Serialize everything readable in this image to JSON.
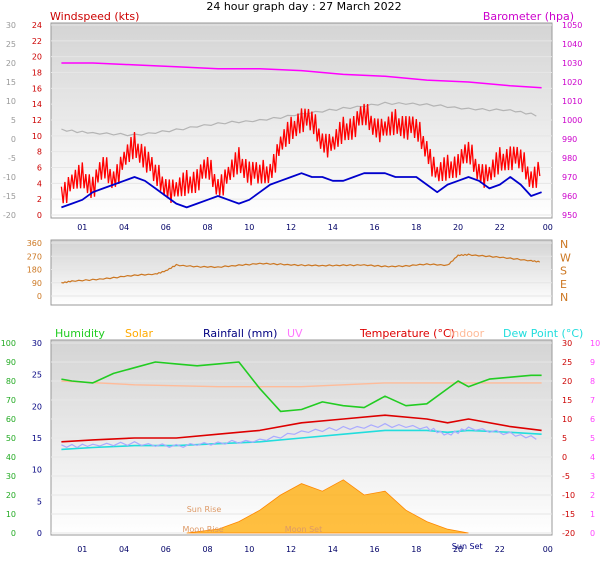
{
  "title": "24 hour graph day : 27 March 2022",
  "colors": {
    "wind_gust": "#ff0000",
    "wind_avg": "#0000cc",
    "barometer": "#ff00ff",
    "temp_gray": "#b4b4b4",
    "direction": "#cc7722",
    "humidity": "#22cc22",
    "solar": "#ffaa00",
    "rain": "#000080",
    "uv": "#ff77ff",
    "temperature": "#dd0000",
    "indoor": "#ffbb99",
    "dewpoint": "#22dddd",
    "ind_baro": "#ff44ff",
    "grad_top": "#d4d4d4",
    "grad_bottom": "#ffffff"
  },
  "x_tick_labels": [
    "01",
    "04",
    "06",
    "08",
    "10",
    "12",
    "14",
    "16",
    "18",
    "20",
    "22",
    "00"
  ],
  "chart_data": [
    {
      "type": "line",
      "panel": "wind-barometer",
      "labels": {
        "left": "Windspeed (kts)",
        "right": "Barometer (hpa)"
      },
      "left_outer_ticks": [
        "30",
        "25",
        "20",
        "15",
        "10",
        "5",
        "0",
        "-5",
        "-10",
        "-15",
        "-20"
      ],
      "left_ticks": [
        "24",
        "22",
        "20",
        "18",
        "16",
        "14",
        "12",
        "10",
        "8",
        "6",
        "4",
        "2",
        "0"
      ],
      "right_ticks": [
        "1050",
        "1040",
        "1030",
        "1020",
        "1010",
        "1000",
        "990",
        "980",
        "970",
        "960",
        "950"
      ],
      "ylim_wind": [
        0,
        25
      ],
      "ylim_baro": [
        950,
        1050
      ],
      "series": [
        {
          "key": "gust",
          "color_key": "wind_gust",
          "x": [
            0.5,
            1,
            1.5,
            2,
            2.5,
            3,
            3.5,
            4,
            4.5,
            5,
            5.5,
            6,
            6.5,
            7,
            7.5,
            8,
            8.5,
            9,
            9.5,
            10,
            10.5,
            11,
            11.5,
            12,
            12.5,
            13,
            13.5,
            14,
            14.5,
            15,
            15.5,
            16,
            16.5,
            17,
            17.5,
            18,
            18.5,
            19,
            19.5,
            20,
            20.5,
            21,
            21.5,
            22,
            22.5,
            23,
            23.5
          ],
          "values": [
            3,
            4,
            5,
            4,
            6,
            5,
            7,
            9,
            8,
            5,
            4,
            3,
            4,
            5,
            6,
            4,
            5,
            7,
            6,
            5,
            6,
            9,
            11,
            13,
            12,
            10,
            9,
            11,
            12,
            13,
            12,
            11,
            12,
            12,
            11,
            9,
            5,
            6,
            7,
            8,
            6,
            5,
            7,
            8,
            7,
            5,
            6
          ]
        },
        {
          "key": "avg",
          "color_key": "wind_avg",
          "x": [
            0.5,
            1,
            1.5,
            2,
            2.5,
            3,
            3.5,
            4,
            4.5,
            5,
            5.5,
            6,
            6.5,
            7,
            7.5,
            8,
            8.5,
            9,
            9.5,
            10,
            10.5,
            11,
            11.5,
            12,
            12.5,
            13,
            13.5,
            14,
            14.5,
            15,
            15.5,
            16,
            16.5,
            17,
            17.5,
            18,
            18.5,
            19,
            19.5,
            20,
            20.5,
            21,
            21.5,
            22,
            22.5,
            23,
            23.5
          ],
          "values": [
            1,
            1.5,
            2,
            3,
            3.5,
            4,
            4.5,
            5,
            4.5,
            3.5,
            2.5,
            1.5,
            1,
            1.5,
            2,
            2.5,
            2,
            1.5,
            2,
            3,
            4,
            4.5,
            5,
            5.5,
            5,
            5,
            4.5,
            4.5,
            5,
            5.5,
            5.5,
            5.5,
            5,
            5,
            5,
            4,
            3,
            4,
            4.5,
            5,
            4.5,
            3.5,
            4,
            5,
            4,
            2.5,
            3
          ]
        },
        {
          "key": "barometer",
          "color_key": "barometer",
          "x": [
            0.5,
            2,
            4,
            6,
            8,
            10,
            12,
            13,
            14,
            16,
            18,
            20,
            22,
            23.5
          ],
          "values": [
            1030,
            1030,
            1029,
            1028,
            1027,
            1027,
            1026,
            1025,
            1024,
            1023,
            1021,
            1020,
            1018,
            1017
          ]
        },
        {
          "key": "temp_gray",
          "color_key": "temp_gray",
          "x": [
            0.5,
            2,
            4,
            6,
            8,
            10,
            12,
            14,
            16,
            18,
            20,
            22,
            23.5
          ],
          "values": [
            995,
            993,
            992,
            995,
            998,
            1000,
            1003,
            1006,
            1009,
            1008,
            1006,
            1005,
            1002
          ]
        }
      ]
    },
    {
      "type": "line",
      "panel": "wind-direction",
      "left_ticks": [
        "360",
        "270",
        "180",
        "90",
        "0"
      ],
      "right_ticks": [
        "N",
        "W",
        "S",
        "E",
        "N"
      ],
      "ylim": [
        0,
        360
      ],
      "series": [
        {
          "key": "direction",
          "color_key": "direction",
          "x": [
            0.5,
            1,
            2,
            3,
            4,
            5,
            5.5,
            6,
            7,
            8,
            9,
            10,
            11,
            12,
            13,
            14,
            15,
            16,
            17,
            18,
            19,
            19.5,
            20,
            21,
            22,
            23,
            23.5
          ],
          "values": [
            90,
            100,
            110,
            125,
            140,
            150,
            170,
            210,
            200,
            195,
            210,
            220,
            215,
            210,
            205,
            210,
            210,
            200,
            205,
            215,
            210,
            275,
            280,
            270,
            255,
            240,
            230
          ]
        }
      ]
    },
    {
      "type": "line",
      "panel": "temperature-humidity",
      "legend": [
        "Humidity",
        "Solar",
        "Rainfall (mm)",
        "UV",
        "Temperature (°C)",
        "Indoor",
        "Dew Point (°C)"
      ],
      "legend_colors": [
        "humidity",
        "solar",
        "rain",
        "uv",
        "temperature",
        "indoor",
        "dewpoint"
      ],
      "left_outer_ticks": [
        "100",
        "90",
        "80",
        "70",
        "60",
        "50",
        "40",
        "30",
        "20",
        "10",
        "0"
      ],
      "left_ticks": [
        "30",
        "25",
        "20",
        "15",
        "10",
        "5",
        "0"
      ],
      "right_ticks": [
        "30",
        "25",
        "20",
        "15",
        "10",
        "5",
        "0",
        "-5",
        "-10",
        "-15",
        "-20"
      ],
      "right_outer_ticks": [
        "10",
        "9",
        "8",
        "7",
        "6",
        "5",
        "4",
        "3",
        "2",
        "1",
        "0"
      ],
      "ylim_temp": [
        -20,
        30
      ],
      "ylim_humidity": [
        0,
        100
      ],
      "annotations": [
        "Sun Rise",
        "Moon Rise",
        "Moon Set",
        "Sun Set"
      ],
      "series": [
        {
          "key": "humidity",
          "color_key": "humidity",
          "x": [
            0.5,
            1,
            2,
            3,
            4,
            5,
            6,
            7,
            8,
            9,
            9.5,
            10,
            10.5,
            11,
            12,
            13,
            14,
            15,
            16,
            17,
            18,
            19,
            19.5,
            20,
            21,
            22,
            23,
            23.5
          ],
          "values": [
            81,
            80,
            79,
            84,
            87,
            90,
            89,
            88,
            89,
            90,
            83,
            76,
            70,
            64,
            65,
            69,
            67,
            66,
            72,
            67,
            68,
            76,
            80,
            77,
            81,
            82,
            83,
            83
          ]
        },
        {
          "key": "temperature",
          "color_key": "temperature",
          "x": [
            0.5,
            2,
            4,
            6,
            8,
            10,
            12,
            14,
            16,
            18,
            19,
            20,
            22,
            23.5
          ],
          "values": [
            4,
            4.5,
            5,
            5,
            6,
            7,
            9,
            10,
            11,
            10,
            9,
            10,
            8,
            7
          ]
        },
        {
          "key": "uv_band",
          "color_key": "uv",
          "x": [
            0.5,
            2,
            4,
            6,
            8,
            10,
            12,
            14,
            16,
            18,
            19,
            20,
            22,
            23.5
          ],
          "values": [
            3,
            3,
            3.5,
            3,
            3.5,
            4.5,
            6.5,
            7.5,
            8.5,
            7.5,
            6,
            7.5,
            6,
            5
          ]
        },
        {
          "key": "dewpoint",
          "color_key": "dewpoint",
          "x": [
            0.5,
            2,
            4,
            6,
            8,
            10,
            12,
            14,
            16,
            18,
            19,
            20,
            22,
            23.5
          ],
          "values": [
            2,
            2.5,
            3,
            3,
            3.5,
            4,
            5,
            6,
            7,
            7,
            6.5,
            7,
            6.5,
            6
          ]
        },
        {
          "key": "indoor",
          "color_key": "indoor",
          "x": [
            0.5,
            4,
            8,
            12,
            16,
            20,
            23.5
          ],
          "values": [
            20,
            19,
            18.5,
            18.5,
            19.5,
            19.5,
            19.5
          ]
        },
        {
          "key": "solar",
          "color_key": "solar",
          "x": [
            6.5,
            8,
            9,
            10,
            11,
            12,
            13,
            14,
            15,
            16,
            17,
            18,
            19,
            20
          ],
          "values": [
            -20,
            -19,
            -17,
            -14,
            -10,
            -7,
            -9,
            -6,
            -10,
            -9,
            -14,
            -17,
            -19,
            -20
          ]
        }
      ]
    }
  ]
}
